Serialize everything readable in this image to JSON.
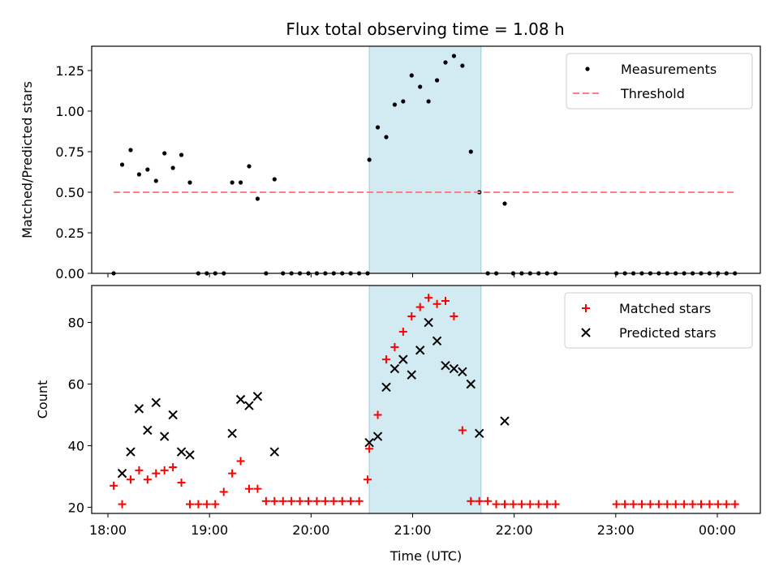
{
  "title": "Flux total observing time = 1.08 h",
  "chart_data": [
    {
      "type": "scatter",
      "title": "Flux total observing time = 1.08 h",
      "xlabel": "",
      "ylabel": "Matched/Predicted stars",
      "xlim": [
        "18:00",
        "00:35"
      ],
      "ylim": [
        0,
        1.4
      ],
      "yticks": [
        "0.00",
        "0.25",
        "0.50",
        "0.75",
        "1.00",
        "1.25"
      ],
      "highlight_span": {
        "x_start": "20:44",
        "x_end": "21:50",
        "color": "#add8e6"
      },
      "legend_position": "top-right",
      "series": [
        {
          "name": "Measurements",
          "marker": "dot",
          "color": "#000000",
          "points": [
            [
              "18:13",
              0
            ],
            [
              "18:18",
              0.67
            ],
            [
              "18:23",
              0.76
            ],
            [
              "18:28",
              0.61
            ],
            [
              "18:33",
              0.64
            ],
            [
              "18:38",
              0.57
            ],
            [
              "18:43",
              0.74
            ],
            [
              "18:48",
              0.65
            ],
            [
              "18:53",
              0.73
            ],
            [
              "18:58",
              0.56
            ],
            [
              "19:03",
              0
            ],
            [
              "19:08",
              0
            ],
            [
              "19:13",
              0
            ],
            [
              "19:18",
              0
            ],
            [
              "19:23",
              0.56
            ],
            [
              "19:28",
              0.56
            ],
            [
              "19:33",
              0.66
            ],
            [
              "19:38",
              0.46
            ],
            [
              "19:43",
              0
            ],
            [
              "19:48",
              0.58
            ],
            [
              "19:53",
              0
            ],
            [
              "19:58",
              0
            ],
            [
              "20:03",
              0
            ],
            [
              "20:08",
              0
            ],
            [
              "20:13",
              0
            ],
            [
              "20:18",
              0
            ],
            [
              "20:23",
              0
            ],
            [
              "20:28",
              0
            ],
            [
              "20:33",
              0
            ],
            [
              "20:38",
              0
            ],
            [
              "20:43",
              0
            ],
            [
              "20:44",
              0.7
            ],
            [
              "20:49",
              0.9
            ],
            [
              "20:54",
              0.84
            ],
            [
              "20:59",
              1.04
            ],
            [
              "21:04",
              1.06
            ],
            [
              "21:09",
              1.22
            ],
            [
              "21:14",
              1.15
            ],
            [
              "21:19",
              1.06
            ],
            [
              "21:24",
              1.19
            ],
            [
              "21:29",
              1.3
            ],
            [
              "21:34",
              1.34
            ],
            [
              "21:39",
              1.28
            ],
            [
              "21:44",
              0.75
            ],
            [
              "21:49",
              0.5
            ],
            [
              "21:54",
              0
            ],
            [
              "21:59",
              0
            ],
            [
              "22:04",
              0.43
            ],
            [
              "22:09",
              0
            ],
            [
              "22:14",
              0
            ],
            [
              "22:19",
              0
            ],
            [
              "22:24",
              0
            ],
            [
              "22:29",
              0
            ],
            [
              "22:34",
              0
            ],
            [
              "23:10",
              0
            ],
            [
              "23:15",
              0
            ],
            [
              "23:20",
              0
            ],
            [
              "23:25",
              0
            ],
            [
              "23:30",
              0
            ],
            [
              "23:35",
              0
            ],
            [
              "23:40",
              0
            ],
            [
              "23:45",
              0
            ],
            [
              "23:50",
              0
            ],
            [
              "23:55",
              0
            ],
            [
              "00:00",
              0
            ],
            [
              "00:05",
              0
            ],
            [
              "00:10",
              0
            ],
            [
              "00:15",
              0
            ],
            [
              "00:20",
              0
            ]
          ]
        },
        {
          "name": "Threshold",
          "marker": "dashed-line",
          "color": "#ff7f7f",
          "points": [
            [
              "18:13",
              0.5
            ],
            [
              "00:20",
              0.5
            ]
          ]
        }
      ]
    },
    {
      "type": "scatter",
      "title": "",
      "xlabel": "Time (UTC)",
      "ylabel": "Count",
      "xlim": [
        "18:00",
        "00:35"
      ],
      "ylim": [
        18,
        92
      ],
      "yticks": [
        "20",
        "40",
        "60",
        "80"
      ],
      "xticks": [
        "18:00",
        "19:00",
        "20:00",
        "21:00",
        "22:00",
        "23:00",
        "00:00"
      ],
      "highlight_span": {
        "x_start": "20:44",
        "x_end": "21:50",
        "color": "#add8e6"
      },
      "legend_position": "top-right",
      "series": [
        {
          "name": "Matched stars",
          "marker": "plus",
          "color": "#ff0000",
          "points": [
            [
              "18:13",
              27
            ],
            [
              "18:18",
              21
            ],
            [
              "18:23",
              29
            ],
            [
              "18:28",
              32
            ],
            [
              "18:33",
              29
            ],
            [
              "18:38",
              31
            ],
            [
              "18:43",
              32
            ],
            [
              "18:48",
              33
            ],
            [
              "18:53",
              28
            ],
            [
              "18:58",
              21
            ],
            [
              "19:03",
              21
            ],
            [
              "19:08",
              21
            ],
            [
              "19:13",
              21
            ],
            [
              "19:18",
              25
            ],
            [
              "19:23",
              31
            ],
            [
              "19:28",
              35
            ],
            [
              "19:33",
              26
            ],
            [
              "19:38",
              26
            ],
            [
              "19:43",
              22
            ],
            [
              "19:48",
              22
            ],
            [
              "19:53",
              22
            ],
            [
              "19:58",
              22
            ],
            [
              "20:03",
              22
            ],
            [
              "20:08",
              22
            ],
            [
              "20:13",
              22
            ],
            [
              "20:18",
              22
            ],
            [
              "20:23",
              22
            ],
            [
              "20:28",
              22
            ],
            [
              "20:33",
              22
            ],
            [
              "20:38",
              22
            ],
            [
              "20:43",
              29
            ],
            [
              "20:44",
              39
            ],
            [
              "20:49",
              50
            ],
            [
              "20:54",
              68
            ],
            [
              "20:59",
              72
            ],
            [
              "21:04",
              77
            ],
            [
              "21:09",
              82
            ],
            [
              "21:14",
              85
            ],
            [
              "21:19",
              88
            ],
            [
              "21:24",
              86
            ],
            [
              "21:29",
              87
            ],
            [
              "21:34",
              82
            ],
            [
              "21:39",
              45
            ],
            [
              "21:44",
              22
            ],
            [
              "21:49",
              22
            ],
            [
              "21:54",
              22
            ],
            [
              "21:59",
              21
            ],
            [
              "22:04",
              21
            ],
            [
              "22:09",
              21
            ],
            [
              "22:14",
              21
            ],
            [
              "22:19",
              21
            ],
            [
              "22:24",
              21
            ],
            [
              "22:29",
              21
            ],
            [
              "22:34",
              21
            ],
            [
              "23:10",
              21
            ],
            [
              "23:15",
              21
            ],
            [
              "23:20",
              21
            ],
            [
              "23:25",
              21
            ],
            [
              "23:30",
              21
            ],
            [
              "23:35",
              21
            ],
            [
              "23:40",
              21
            ],
            [
              "23:45",
              21
            ],
            [
              "23:50",
              21
            ],
            [
              "23:55",
              21
            ],
            [
              "00:00",
              21
            ],
            [
              "00:05",
              21
            ],
            [
              "00:10",
              21
            ],
            [
              "00:15",
              21
            ],
            [
              "00:20",
              21
            ]
          ]
        },
        {
          "name": "Predicted stars",
          "marker": "x",
          "color": "#000000",
          "points": [
            [
              "18:18",
              31
            ],
            [
              "18:23",
              38
            ],
            [
              "18:28",
              52
            ],
            [
              "18:33",
              45
            ],
            [
              "18:38",
              54
            ],
            [
              "18:43",
              43
            ],
            [
              "18:48",
              50
            ],
            [
              "18:53",
              38
            ],
            [
              "18:58",
              37
            ],
            [
              "19:23",
              44
            ],
            [
              "19:28",
              55
            ],
            [
              "19:33",
              53
            ],
            [
              "19:38",
              56
            ],
            [
              "19:48",
              38
            ],
            [
              "20:44",
              41
            ],
            [
              "20:49",
              43
            ],
            [
              "20:54",
              59
            ],
            [
              "20:59",
              65
            ],
            [
              "21:04",
              68
            ],
            [
              "21:09",
              63
            ],
            [
              "21:14",
              71
            ],
            [
              "21:19",
              80
            ],
            [
              "21:24",
              74
            ],
            [
              "21:29",
              66
            ],
            [
              "21:34",
              65
            ],
            [
              "21:39",
              64
            ],
            [
              "21:44",
              60
            ],
            [
              "21:49",
              44
            ],
            [
              "22:04",
              48
            ]
          ]
        }
      ]
    }
  ]
}
